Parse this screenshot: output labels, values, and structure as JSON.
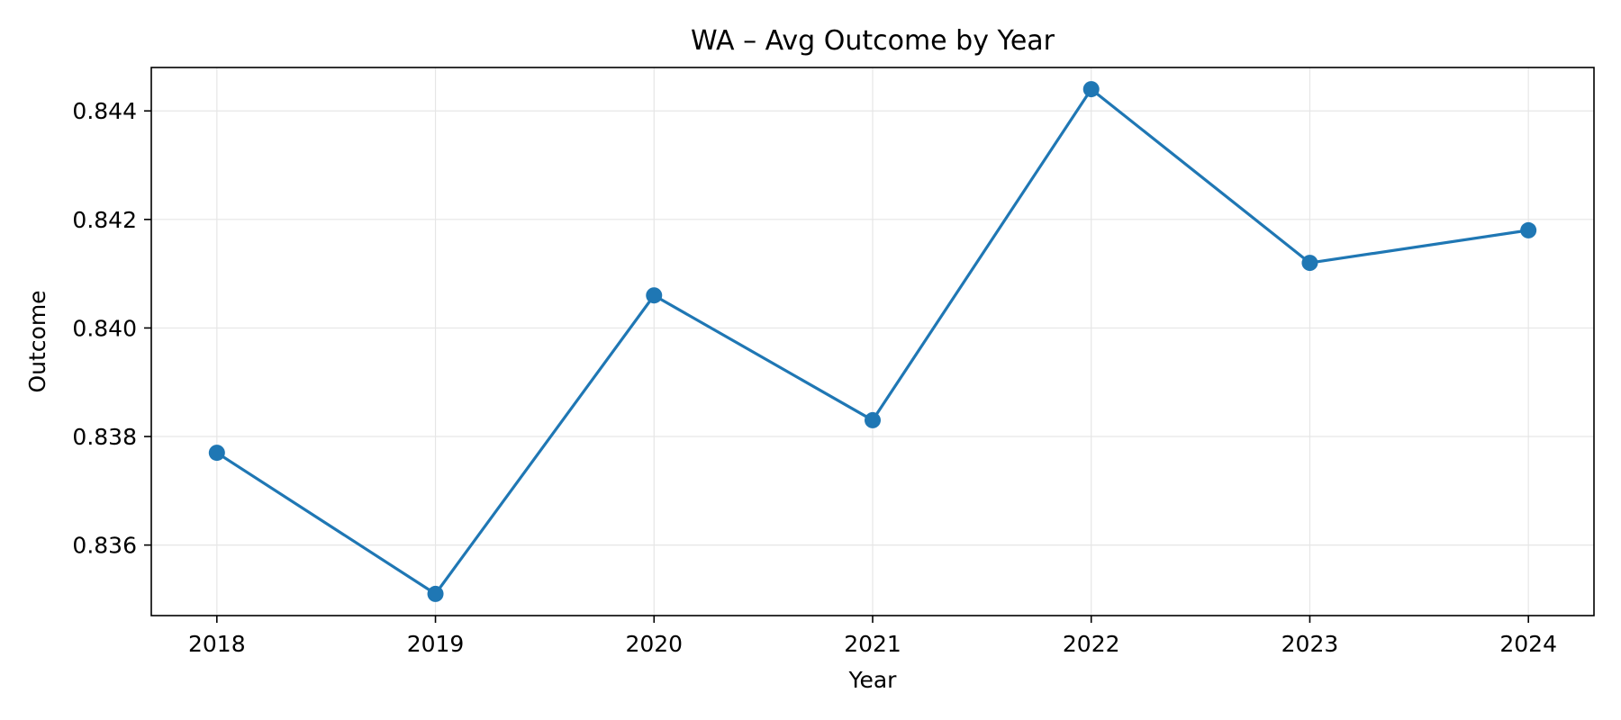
{
  "chart_data": {
    "type": "line",
    "title": "WA – Avg Outcome by Year",
    "xlabel": "Year",
    "ylabel": "Outcome",
    "x": [
      2018,
      2019,
      2020,
      2021,
      2022,
      2023,
      2024
    ],
    "x_tick_labels": [
      "2018",
      "2019",
      "2020",
      "2021",
      "2022",
      "2023",
      "2024"
    ],
    "y_ticks": [
      0.836,
      0.838,
      0.84,
      0.842,
      0.844
    ],
    "y_tick_labels": [
      "0.836",
      "0.838",
      "0.840",
      "0.842",
      "0.844"
    ],
    "xlim": [
      2017.7,
      2024.3
    ],
    "ylim": [
      0.8347,
      0.8448
    ],
    "grid": true,
    "series": [
      {
        "values": [
          0.8377,
          0.8351,
          0.8406,
          0.8383,
          0.8444,
          0.8412,
          0.8418
        ],
        "color": "#1f77b4",
        "marker": "circle"
      }
    ]
  }
}
